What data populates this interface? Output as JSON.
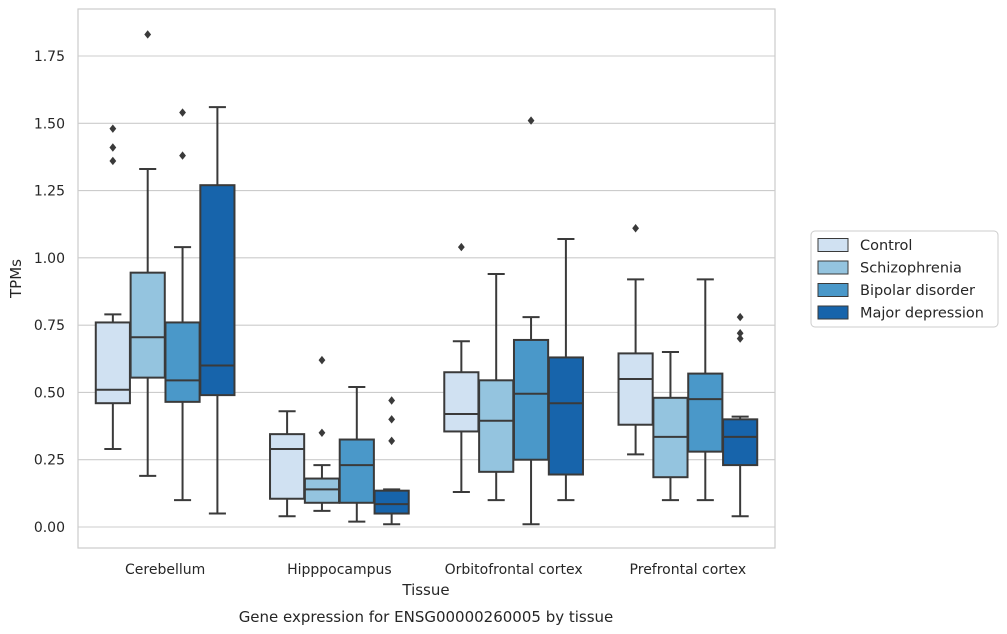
{
  "chart_data": {
    "type": "boxplot",
    "title": "Gene expression for ENSG00000260005 by tissue",
    "xlabel": "Tissue",
    "ylabel": "TPMs",
    "ylim": [
      -0.08,
      1.93
    ],
    "yticks": [
      "0.00",
      "0.25",
      "0.50",
      "0.75",
      "1.00",
      "1.25",
      "1.50",
      "1.75"
    ],
    "categories": [
      "Cerebellum",
      "Hipppocampus",
      "Orbitofrontal cortex",
      "Prefrontal cortex"
    ],
    "grid": "horizontal",
    "legend_position": "right",
    "series": [
      {
        "name": "Control",
        "color": "#d0e1f2",
        "boxes": [
          {
            "whisker_low": 0.29,
            "q1": 0.46,
            "median": 0.51,
            "q3": 0.76,
            "whisker_high": 0.79,
            "outliers": [
              1.36,
              1.41,
              1.48
            ]
          },
          {
            "whisker_low": 0.04,
            "q1": 0.105,
            "median": 0.29,
            "q3": 0.345,
            "whisker_high": 0.43,
            "outliers": []
          },
          {
            "whisker_low": 0.13,
            "q1": 0.355,
            "median": 0.42,
            "q3": 0.575,
            "whisker_high": 0.69,
            "outliers": [
              1.04
            ]
          },
          {
            "whisker_low": 0.27,
            "q1": 0.38,
            "median": 0.55,
            "q3": 0.645,
            "whisker_high": 0.92,
            "outliers": [
              1.11
            ]
          }
        ]
      },
      {
        "name": "Schizophrenia",
        "color": "#94c4df",
        "boxes": [
          {
            "whisker_low": 0.19,
            "q1": 0.555,
            "median": 0.705,
            "q3": 0.945,
            "whisker_high": 1.33,
            "outliers": [
              1.83
            ]
          },
          {
            "whisker_low": 0.06,
            "q1": 0.09,
            "median": 0.14,
            "q3": 0.18,
            "whisker_high": 0.23,
            "outliers": [
              0.35,
              0.62
            ]
          },
          {
            "whisker_low": 0.1,
            "q1": 0.205,
            "median": 0.395,
            "q3": 0.545,
            "whisker_high": 0.94,
            "outliers": []
          },
          {
            "whisker_low": 0.1,
            "q1": 0.185,
            "median": 0.335,
            "q3": 0.48,
            "whisker_high": 0.65,
            "outliers": []
          }
        ]
      },
      {
        "name": "Bipolar disorder",
        "color": "#4a98c9",
        "boxes": [
          {
            "whisker_low": 0.1,
            "q1": 0.465,
            "median": 0.545,
            "q3": 0.76,
            "whisker_high": 1.04,
            "outliers": [
              1.38,
              1.54
            ]
          },
          {
            "whisker_low": 0.02,
            "q1": 0.09,
            "median": 0.23,
            "q3": 0.325,
            "whisker_high": 0.52,
            "outliers": []
          },
          {
            "whisker_low": 0.01,
            "q1": 0.25,
            "median": 0.495,
            "q3": 0.695,
            "whisker_high": 0.78,
            "outliers": [
              1.51
            ]
          },
          {
            "whisker_low": 0.1,
            "q1": 0.28,
            "median": 0.475,
            "q3": 0.57,
            "whisker_high": 0.92,
            "outliers": []
          }
        ]
      },
      {
        "name": "Major depression",
        "color": "#1764ab",
        "boxes": [
          {
            "whisker_low": 0.05,
            "q1": 0.49,
            "median": 0.6,
            "q3": 1.27,
            "whisker_high": 1.56,
            "outliers": []
          },
          {
            "whisker_low": 0.01,
            "q1": 0.05,
            "median": 0.085,
            "q3": 0.135,
            "whisker_high": 0.14,
            "outliers": [
              0.32,
              0.4,
              0.47
            ]
          },
          {
            "whisker_low": 0.1,
            "q1": 0.195,
            "median": 0.46,
            "q3": 0.63,
            "whisker_high": 1.07,
            "outliers": []
          },
          {
            "whisker_low": 0.04,
            "q1": 0.23,
            "median": 0.335,
            "q3": 0.4,
            "whisker_high": 0.41,
            "outliers": [
              0.7,
              0.72,
              0.78
            ]
          }
        ]
      }
    ]
  }
}
